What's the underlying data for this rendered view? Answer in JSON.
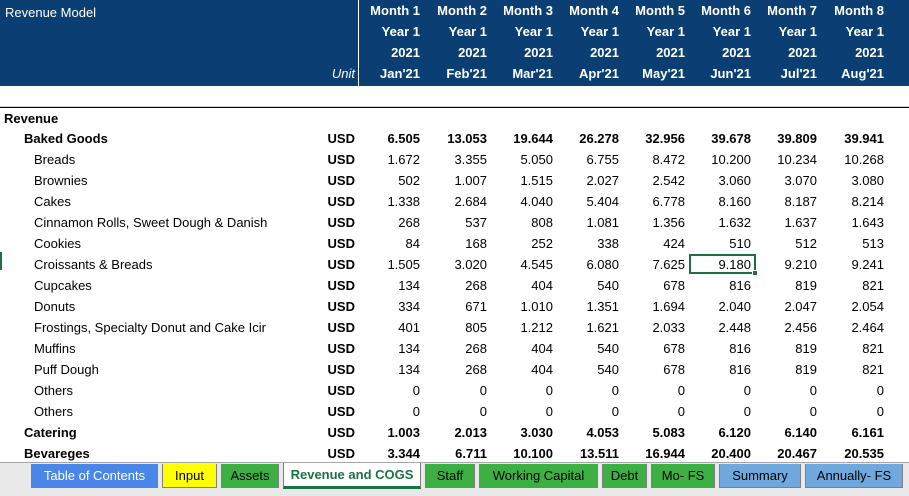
{
  "sheet": {
    "title": "Revenue Model",
    "unit_header": "Unit",
    "months": [
      {
        "m": "Month 1",
        "y": "Year 1",
        "yr": "2021",
        "d": "Jan'21"
      },
      {
        "m": "Month 2",
        "y": "Year 1",
        "yr": "2021",
        "d": "Feb'21"
      },
      {
        "m": "Month 3",
        "y": "Year 1",
        "yr": "2021",
        "d": "Mar'21"
      },
      {
        "m": "Month 4",
        "y": "Year 1",
        "yr": "2021",
        "d": "Apr'21"
      },
      {
        "m": "Month 5",
        "y": "Year 1",
        "yr": "2021",
        "d": "May'21"
      },
      {
        "m": "Month 6",
        "y": "Year 1",
        "yr": "2021",
        "d": "Jun'21"
      },
      {
        "m": "Month 7",
        "y": "Year 1",
        "yr": "2021",
        "d": "Jul'21"
      },
      {
        "m": "Month 8",
        "y": "Year 1",
        "yr": "2021",
        "d": "Aug'21"
      }
    ],
    "section": "Revenue",
    "rows": [
      {
        "label": "Baked Goods",
        "unit": "USD",
        "bold": true,
        "indent": 1,
        "v": [
          "6.505",
          "13.053",
          "19.644",
          "26.278",
          "32.956",
          "39.678",
          "39.809",
          "39.941"
        ]
      },
      {
        "label": "Breads",
        "unit": "USD",
        "bold": false,
        "indent": 2,
        "v": [
          "1.672",
          "3.355",
          "5.050",
          "6.755",
          "8.472",
          "10.200",
          "10.234",
          "10.268"
        ]
      },
      {
        "label": "Brownies",
        "unit": "USD",
        "bold": false,
        "indent": 2,
        "v": [
          "502",
          "1.007",
          "1.515",
          "2.027",
          "2.542",
          "3.060",
          "3.070",
          "3.080"
        ]
      },
      {
        "label": "Cakes",
        "unit": "USD",
        "bold": false,
        "indent": 2,
        "v": [
          "1.338",
          "2.684",
          "4.040",
          "5.404",
          "6.778",
          "8.160",
          "8.187",
          "8.214"
        ]
      },
      {
        "label": "Cinnamon Rolls, Sweet Dough & Danish",
        "unit": "USD",
        "bold": false,
        "indent": 2,
        "v": [
          "268",
          "537",
          "808",
          "1.081",
          "1.356",
          "1.632",
          "1.637",
          "1.643"
        ]
      },
      {
        "label": "Cookies",
        "unit": "USD",
        "bold": false,
        "indent": 2,
        "v": [
          "84",
          "168",
          "252",
          "338",
          "424",
          "510",
          "512",
          "513"
        ]
      },
      {
        "label": "Croissants & Breads",
        "unit": "USD",
        "bold": false,
        "indent": 2,
        "v": [
          "1.505",
          "3.020",
          "4.545",
          "6.080",
          "7.625",
          "9.180",
          "9.210",
          "9.241"
        ]
      },
      {
        "label": "Cupcakes",
        "unit": "USD",
        "bold": false,
        "indent": 2,
        "v": [
          "134",
          "268",
          "404",
          "540",
          "678",
          "816",
          "819",
          "821"
        ]
      },
      {
        "label": "Donuts",
        "unit": "USD",
        "bold": false,
        "indent": 2,
        "v": [
          "334",
          "671",
          "1.010",
          "1.351",
          "1.694",
          "2.040",
          "2.047",
          "2.054"
        ]
      },
      {
        "label": "Frostings, Specialty Donut and Cake Icir",
        "unit": "USD",
        "bold": false,
        "indent": 2,
        "v": [
          "401",
          "805",
          "1.212",
          "1.621",
          "2.033",
          "2.448",
          "2.456",
          "2.464"
        ]
      },
      {
        "label": "Muffins",
        "unit": "USD",
        "bold": false,
        "indent": 2,
        "v": [
          "134",
          "268",
          "404",
          "540",
          "678",
          "816",
          "819",
          "821"
        ]
      },
      {
        "label": "Puff Dough",
        "unit": "USD",
        "bold": false,
        "indent": 2,
        "v": [
          "134",
          "268",
          "404",
          "540",
          "678",
          "816",
          "819",
          "821"
        ]
      },
      {
        "label": "Others",
        "unit": "USD",
        "bold": false,
        "indent": 2,
        "v": [
          "0",
          "0",
          "0",
          "0",
          "0",
          "0",
          "0",
          "0"
        ]
      },
      {
        "label": "Others",
        "unit": "USD",
        "bold": false,
        "indent": 2,
        "v": [
          "0",
          "0",
          "0",
          "0",
          "0",
          "0",
          "0",
          "0"
        ]
      },
      {
        "label": "Catering",
        "unit": "USD",
        "bold": true,
        "indent": 1,
        "v": [
          "1.003",
          "2.013",
          "3.030",
          "4.053",
          "5.083",
          "6.120",
          "6.140",
          "6.161"
        ]
      },
      {
        "label": "Bevareges",
        "unit": "USD",
        "bold": true,
        "indent": 1,
        "v": [
          "3.344",
          "6.711",
          "10.100",
          "13.511",
          "16.944",
          "20.400",
          "20.467",
          "20.535"
        ]
      }
    ]
  },
  "tabs": [
    {
      "label": "Table of Contents",
      "color": "#4a86e8"
    },
    {
      "label": "Input",
      "color": "#ffff00"
    },
    {
      "label": "Assets",
      "color": "#3cb043"
    },
    {
      "label": "Revenue and COGS",
      "color": "#ffffff",
      "active": true
    },
    {
      "label": "Staff",
      "color": "#3cb043"
    },
    {
      "label": "Working Capital",
      "color": "#3cb043"
    },
    {
      "label": "Debt",
      "color": "#3cb043"
    },
    {
      "label": "Mo- FS",
      "color": "#3cb043"
    },
    {
      "label": "Summary",
      "color": "#6fa8dc"
    },
    {
      "label": "Annually- FS",
      "color": "#6fa8dc"
    }
  ]
}
